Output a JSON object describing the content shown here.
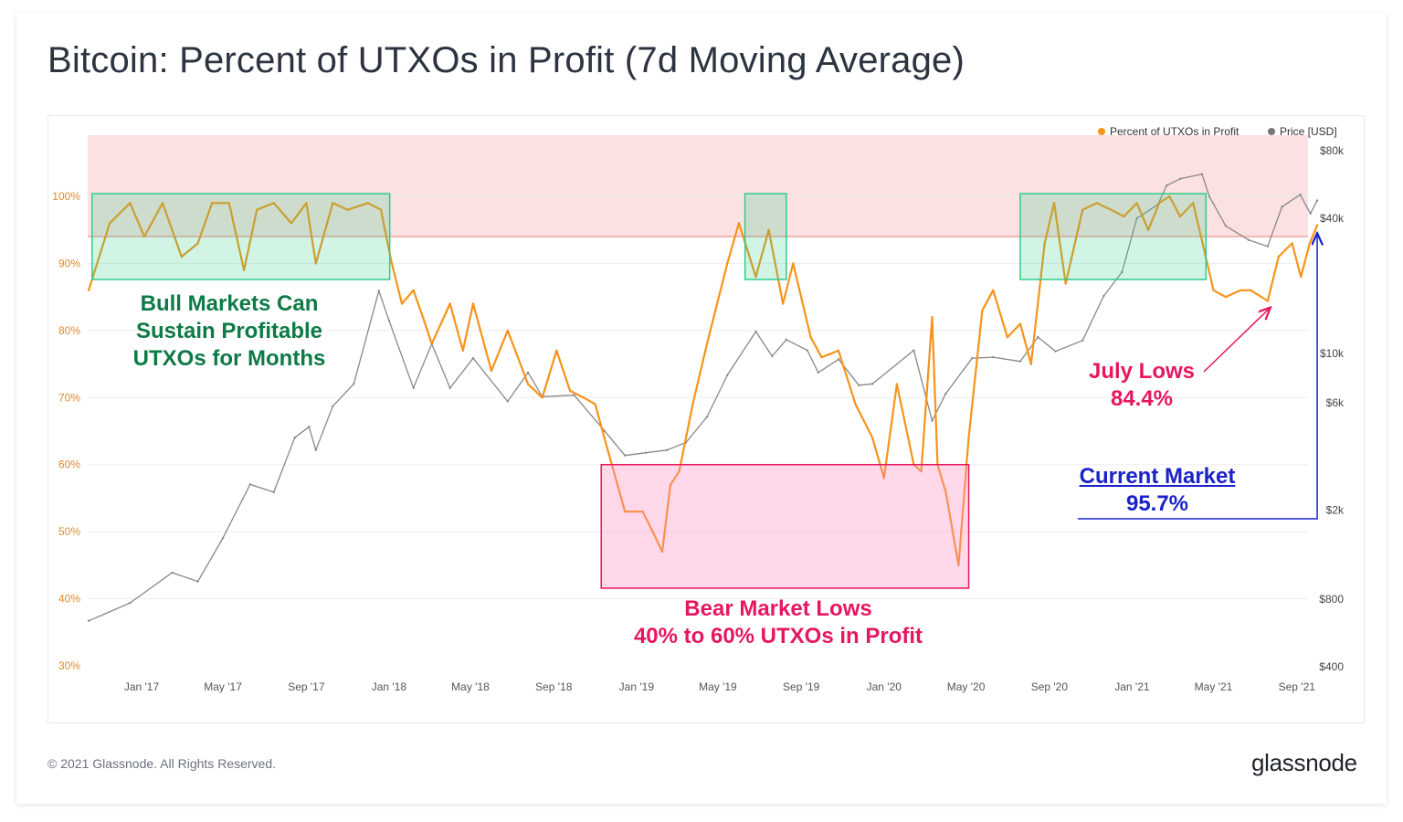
{
  "title": "Bitcoin: Percent of UTXOs in Profit (7d Moving Average)",
  "footer": {
    "copyright": "© 2021 Glassnode. All Rights Reserved.",
    "brand": "glassnode"
  },
  "legend": {
    "items": [
      {
        "label": "Percent of UTXOs in Profit",
        "color": "#f7931a"
      },
      {
        "label": "Price [USD]",
        "color": "#777777"
      }
    ]
  },
  "annotations": {
    "bull": {
      "line1": "Bull Markets Can",
      "line2": "Sustain Profitable",
      "line3": "UTXOs for Months"
    },
    "bear": {
      "line1": "Bear Market Lows",
      "line2": "40% to 60% UTXOs in Profit"
    },
    "july": {
      "line1": "July Lows",
      "line2": "84.4%"
    },
    "current": {
      "line1": "Current Market",
      "line2": "95.7%"
    }
  },
  "colors": {
    "profit": "#f7931a",
    "price": "#888888",
    "bull_box": "#2ecc8a",
    "bear_box": "#e6175f",
    "top_band": "#f8c9c9"
  },
  "chart_data": {
    "type": "line",
    "title": "Bitcoin: Percent of UTXOs in Profit (7d Moving Average)",
    "x_ticks": [
      "Jan '17",
      "May '17",
      "Sep '17",
      "Jan '18",
      "May '18",
      "Sep '18",
      "Jan '19",
      "May '19",
      "Sep '19",
      "Jan '20",
      "May '20",
      "Sep '20",
      "Jan '21",
      "May '21",
      "Sep '21"
    ],
    "y_left_ticks": [
      "100%",
      "90%",
      "80%",
      "70%",
      "60%",
      "50%",
      "40%",
      "30%"
    ],
    "y_left_range": [
      30,
      100
    ],
    "y_right_ticks": [
      "$80k",
      "$40k",
      "$10k",
      "$6k",
      "$2k",
      "$800",
      "$400"
    ],
    "y_right_scale": "log",
    "grid": true,
    "legend_position": "top-right",
    "series": [
      {
        "name": "Percent of UTXOs in Profit",
        "axis": "left",
        "x": [
          "2016-10-15",
          "2016-11-15",
          "2016-12-15",
          "2017-01-05",
          "2017-02-01",
          "2017-03-01",
          "2017-03-25",
          "2017-04-15",
          "2017-05-10",
          "2017-06-01",
          "2017-06-20",
          "2017-07-15",
          "2017-08-10",
          "2017-09-01",
          "2017-09-15",
          "2017-10-10",
          "2017-11-01",
          "2017-12-01",
          "2017-12-20",
          "2018-01-05",
          "2018-01-20",
          "2018-02-06",
          "2018-02-20",
          "2018-03-05",
          "2018-04-01",
          "2018-04-20",
          "2018-05-05",
          "2018-06-01",
          "2018-06-25",
          "2018-07-25",
          "2018-08-15",
          "2018-09-05",
          "2018-09-25",
          "2018-10-15",
          "2018-11-01",
          "2018-11-20",
          "2018-12-15",
          "2019-01-10",
          "2019-01-25",
          "2019-02-08",
          "2019-02-20",
          "2019-03-05",
          "2019-03-25",
          "2019-04-15",
          "2019-05-15",
          "2019-06-01",
          "2019-06-26",
          "2019-07-15",
          "2019-08-05",
          "2019-08-20",
          "2019-09-15",
          "2019-10-01",
          "2019-10-26",
          "2019-11-20",
          "2019-12-15",
          "2020-01-01",
          "2020-01-20",
          "2020-02-14",
          "2020-02-25",
          "2020-03-12",
          "2020-03-20",
          "2020-04-01",
          "2020-04-20",
          "2020-05-05",
          "2020-05-25",
          "2020-06-10",
          "2020-07-01",
          "2020-07-20",
          "2020-08-05",
          "2020-08-25",
          "2020-09-08",
          "2020-09-25",
          "2020-10-20",
          "2020-11-10",
          "2020-12-01",
          "2020-12-20",
          "2021-01-08",
          "2021-01-25",
          "2021-02-10",
          "2021-02-25",
          "2021-03-13",
          "2021-04-01",
          "2021-04-15",
          "2021-05-01",
          "2021-05-19",
          "2021-06-10",
          "2021-06-25",
          "2021-07-20",
          "2021-08-05",
          "2021-08-25",
          "2021-09-07",
          "2021-09-20",
          "2021-10-01"
        ],
        "values": [
          86,
          96,
          99,
          94,
          99,
          91,
          93,
          99,
          99,
          89,
          98,
          99,
          96,
          99,
          90,
          99,
          98,
          99,
          98,
          90,
          84,
          86,
          82,
          78,
          84,
          77,
          84,
          74,
          80,
          72,
          70,
          77,
          71,
          70,
          69,
          62,
          53,
          53,
          50,
          47,
          57,
          59,
          69,
          78,
          90,
          96,
          88,
          95,
          84,
          90,
          79,
          76,
          77,
          69,
          64,
          58,
          72,
          60,
          59,
          82,
          60,
          56,
          45,
          64,
          83,
          86,
          79,
          81,
          75,
          93,
          99,
          87,
          98,
          99,
          98,
          97,
          99,
          95,
          99,
          100,
          97,
          99,
          93,
          86,
          85,
          86,
          86,
          84.4,
          91,
          93,
          88,
          93,
          95.7
        ]
      },
      {
        "name": "Price [USD]",
        "axis": "right",
        "x": [
          "2016-10-15",
          "2016-12-15",
          "2017-02-15",
          "2017-03-25",
          "2017-05-01",
          "2017-06-10",
          "2017-07-15",
          "2017-08-15",
          "2017-09-05",
          "2017-09-15",
          "2017-10-10",
          "2017-11-10",
          "2017-12-17",
          "2018-01-01",
          "2018-02-06",
          "2018-03-05",
          "2018-04-01",
          "2018-05-05",
          "2018-06-25",
          "2018-07-25",
          "2018-08-15",
          "2018-10-01",
          "2018-11-15",
          "2018-12-15",
          "2019-01-15",
          "2019-02-15",
          "2019-03-15",
          "2019-04-15",
          "2019-05-15",
          "2019-06-26",
          "2019-07-20",
          "2019-08-10",
          "2019-09-10",
          "2019-09-26",
          "2019-10-26",
          "2019-11-25",
          "2019-12-15",
          "2020-02-14",
          "2020-03-12",
          "2020-04-01",
          "2020-05-10",
          "2020-06-10",
          "2020-07-20",
          "2020-08-15",
          "2020-09-10",
          "2020-10-20",
          "2020-11-20",
          "2020-12-17",
          "2021-01-08",
          "2021-02-08",
          "2021-02-21",
          "2021-03-13",
          "2021-04-14",
          "2021-04-25",
          "2021-05-19",
          "2021-06-22",
          "2021-07-20",
          "2021-08-10",
          "2021-09-06",
          "2021-09-21",
          "2021-10-01"
        ],
        "values": [
          640,
          770,
          1050,
          960,
          1500,
          2600,
          2400,
          4200,
          4700,
          3700,
          5800,
          7300,
          19000,
          14000,
          7000,
          11000,
          7000,
          9500,
          6100,
          8200,
          6400,
          6500,
          4500,
          3500,
          3600,
          3700,
          4000,
          5200,
          8000,
          12500,
          9700,
          11500,
          10300,
          8200,
          9400,
          7200,
          7300,
          10300,
          5000,
          6600,
          9500,
          9600,
          9200,
          11800,
          10200,
          11400,
          18000,
          23000,
          40000,
          46000,
          56000,
          60000,
          63000,
          50000,
          37000,
          32000,
          30000,
          45000,
          51000,
          42000,
          48000
        ]
      }
    ]
  }
}
